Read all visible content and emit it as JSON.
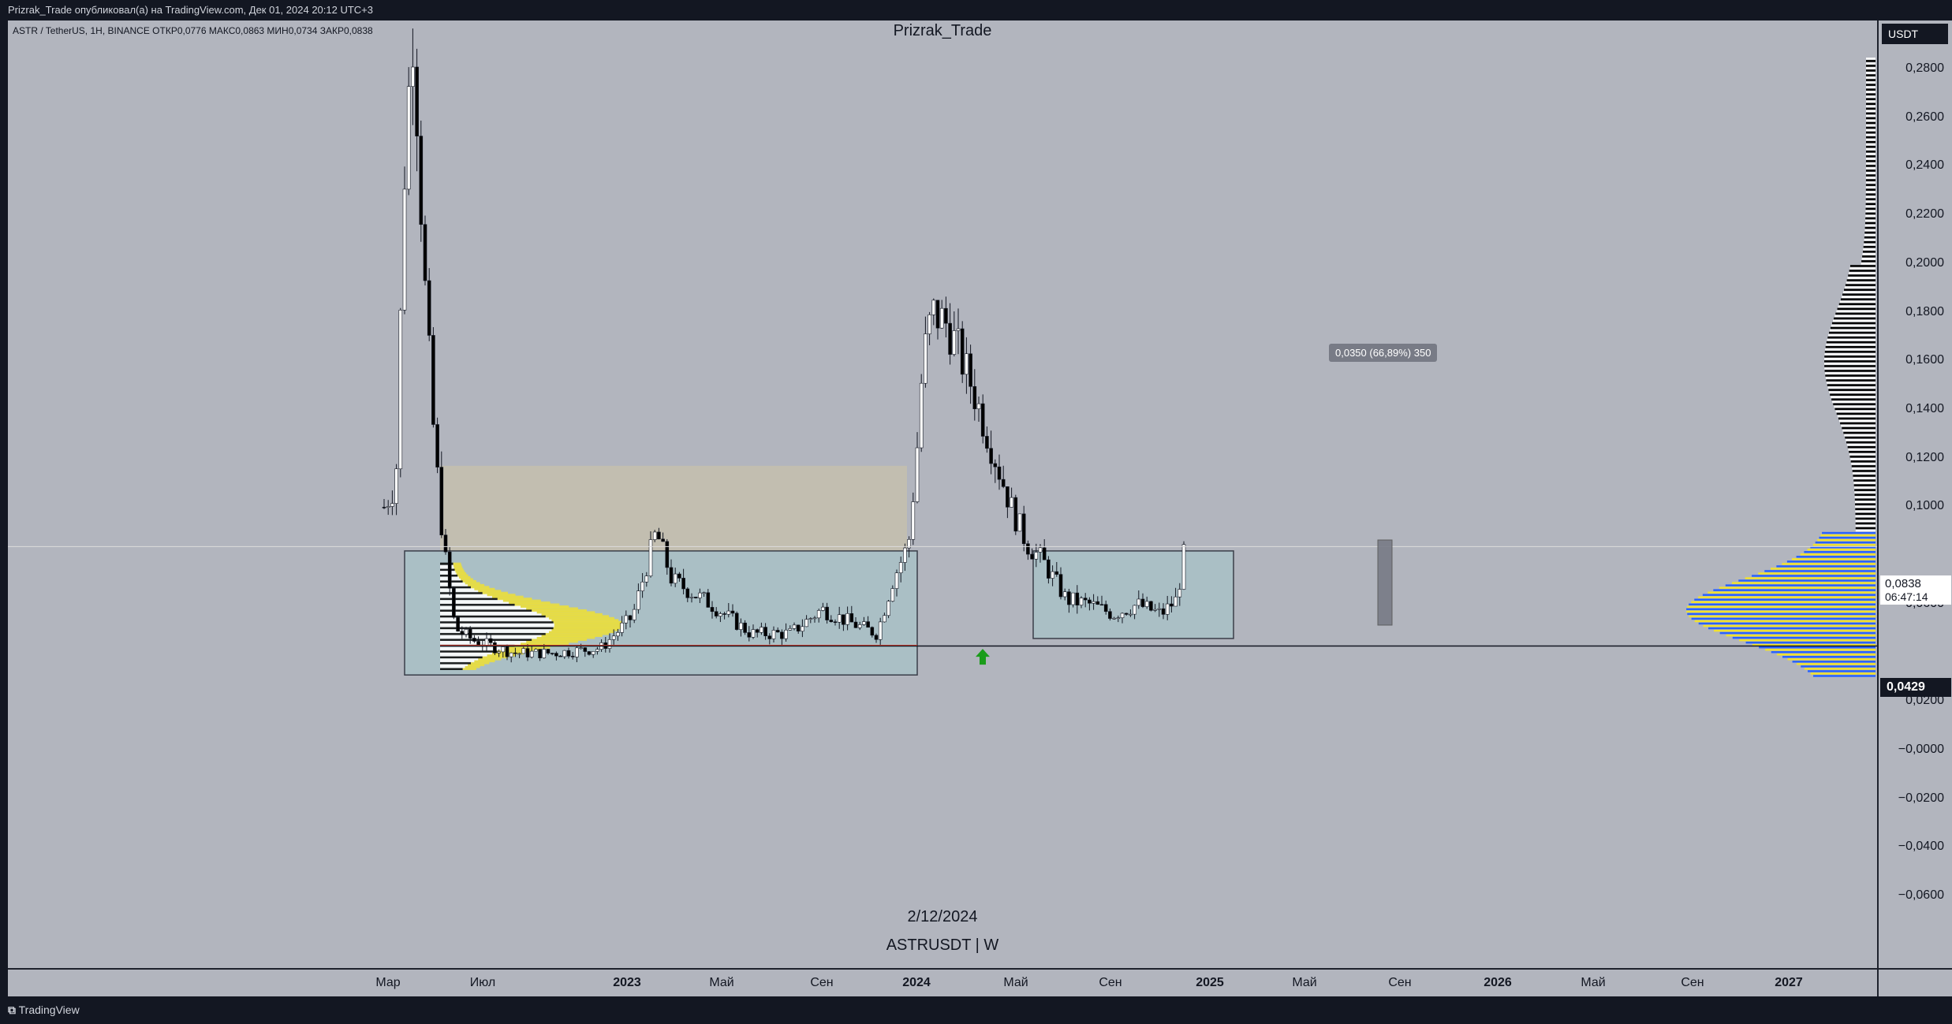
{
  "header": {
    "publisher_line": "Prizrak_Trade опубликовал(а) на TradingView.com, Дек 01, 2024 20:12 UTC+3"
  },
  "symbol_info": "ASTR / TetherUS, 1Н, BINANCE  ОТКР0,0776  МАКС0,0863  МИН0,0734  ЗАКР0,0838",
  "chart_title": "Prizrak_Trade",
  "date_caption": "2/12/2024",
  "symbol_caption": "ASTRUSDT | W",
  "footer": {
    "brand": "TradingView"
  },
  "price_axis": {
    "currency": "USDT",
    "ticks": [
      "0,2800",
      "0,2600",
      "0,2400",
      "0,2200",
      "0,2000",
      "0,1800",
      "0,1600",
      "0,1400",
      "0,1200",
      "0,1000",
      "0,0600",
      "0,0200",
      "−0,0000",
      "−0,0200",
      "−0,0400",
      "−0,0600"
    ],
    "last_price": "0,0838",
    "countdown": "06:47:14",
    "support_price": "0,0429"
  },
  "measure_label": "0,0350 (66,89%) 350",
  "colors": {
    "background": "#b2b5be",
    "up": "#ffffff",
    "down": "#000000",
    "volume_yellow": "#f0e130",
    "volume_blue": "#2962ff"
  },
  "chart_data": {
    "type": "candlestick",
    "ylim": [
      -0.065,
      0.29
    ],
    "x_ticks": [
      {
        "label": "Мар",
        "year": false
      },
      {
        "label": "Июл",
        "year": false
      },
      {
        "label": "2023",
        "year": true
      },
      {
        "label": "Май",
        "year": false
      },
      {
        "label": "Сен",
        "year": false
      },
      {
        "label": "2024",
        "year": true
      },
      {
        "label": "Май",
        "year": false
      },
      {
        "label": "Сен",
        "year": false
      },
      {
        "label": "2025",
        "year": true
      },
      {
        "label": "Май",
        "year": false
      },
      {
        "label": "Сен",
        "year": false
      },
      {
        "label": "2026",
        "year": true
      },
      {
        "label": "Май",
        "year": false
      },
      {
        "label": "Сен",
        "year": false
      },
      {
        "label": "2027",
        "year": true
      }
    ],
    "support_level": 0.0429,
    "last_close": 0.0838,
    "range_boxes": [
      {
        "from": "2022-05",
        "to": "2024-01",
        "low": 0.031,
        "high": 0.082
      },
      {
        "from": "2024-06",
        "to": "2024-12",
        "low": 0.046,
        "high": 0.082
      }
    ],
    "measure": {
      "at": "2025-09",
      "low": 0.0515,
      "high": 0.0865
    }
  }
}
